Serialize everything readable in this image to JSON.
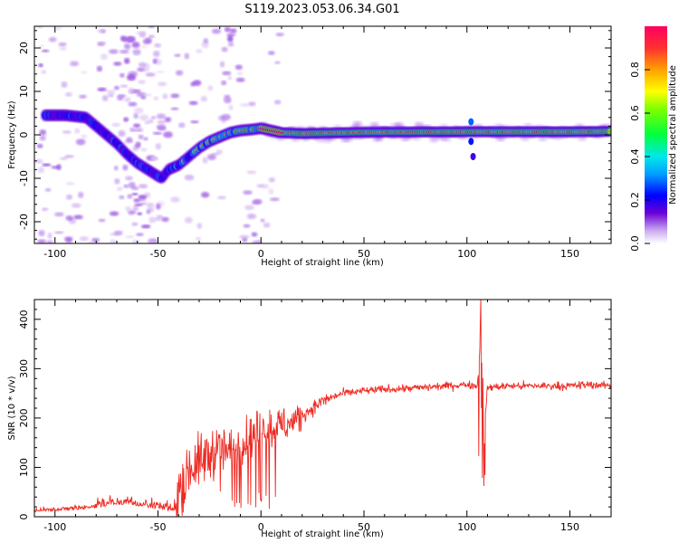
{
  "title": "S119.2023.053.06.34.G01",
  "chart_data": [
    {
      "type": "heatmap",
      "xlabel": "Height of straight line (km)",
      "ylabel": "Frequency (Hz)",
      "xlim": [
        -110,
        170
      ],
      "ylim": [
        -25,
        25
      ],
      "x_ticks": [
        -100,
        -50,
        0,
        50,
        100,
        150
      ],
      "y_ticks": [
        -20,
        -10,
        0,
        10,
        20
      ],
      "colorbar": {
        "label": "Normalized spectral amplitude",
        "range": [
          0.0,
          1.0
        ],
        "ticks": [
          0.0,
          0.2,
          0.4,
          0.6,
          0.8
        ],
        "colormap": [
          "#ffffff",
          "#6a00d6",
          "#0000ff",
          "#00e0ff",
          "#00ff40",
          "#ffff00",
          "#ff8000",
          "#ff0040"
        ]
      },
      "ridge": {
        "x": [
          -105,
          -95,
          -85,
          -80,
          -75,
          -70,
          -65,
          -60,
          -55,
          -50,
          -48,
          -45,
          -40,
          -35,
          -30,
          -25,
          -20,
          -15,
          -10,
          -5,
          0,
          5,
          10,
          20,
          50,
          100,
          150,
          170
        ],
        "frequency": [
          4.5,
          4.5,
          4,
          2,
          0,
          -2,
          -4.5,
          -6.5,
          -8,
          -9.5,
          -10,
          -8,
          -7,
          -5,
          -3,
          -1.5,
          -0.5,
          0.5,
          1,
          1.2,
          1.5,
          1,
          0.5,
          0.3,
          0.6,
          0.7,
          0.7,
          0.8
        ]
      }
    },
    {
      "type": "line",
      "xlabel": "Height of straight line (km)",
      "ylabel": "SNR (10 * v/v)",
      "xlim": [
        -110,
        170
      ],
      "ylim": [
        0,
        440
      ],
      "x_ticks": [
        -100,
        -50,
        0,
        50,
        100,
        150
      ],
      "y_ticks": [
        0,
        100,
        200,
        300,
        400
      ],
      "series": [
        {
          "color": "#ee2a22",
          "x": [
            -110,
            -100,
            -90,
            -80,
            -70,
            -60,
            -50,
            -42,
            -40,
            -35,
            -30,
            -25,
            -20,
            -15,
            -10,
            -5,
            0,
            5,
            10,
            15,
            20,
            25,
            30,
            40,
            50,
            60,
            70,
            80,
            90,
            100,
            105,
            107,
            108,
            110,
            120,
            130,
            140,
            150,
            160,
            170
          ],
          "values": [
            10,
            12,
            14,
            18,
            25,
            22,
            15,
            10,
            60,
            100,
            110,
            125,
            140,
            130,
            150,
            160,
            175,
            180,
            185,
            190,
            205,
            220,
            235,
            250,
            255,
            258,
            260,
            262,
            265,
            268,
            265,
            350,
            150,
            262,
            265,
            265,
            265,
            265,
            268,
            265
          ]
        }
      ]
    }
  ]
}
